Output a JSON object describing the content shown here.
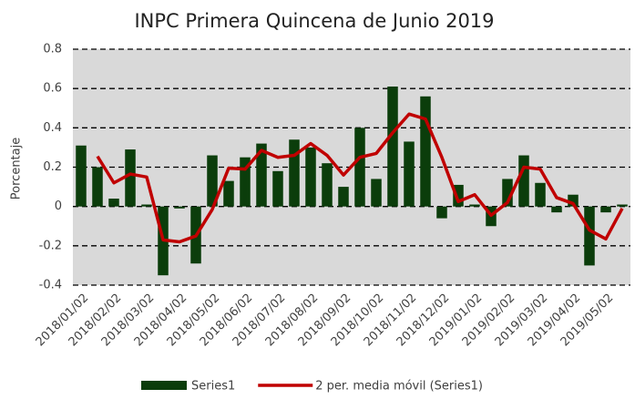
{
  "chart_data": {
    "type": "bar",
    "title": "INPC Primera Quincena de Junio 2019",
    "y_label": "Porcentaje",
    "categories": [
      "2018/01/02",
      null,
      "2018/02/02",
      null,
      "2018/03/02",
      null,
      "2018/04/02",
      null,
      "2018/05/02",
      null,
      "2018/06/02",
      null,
      "2018/07/02",
      null,
      "2018/08/02",
      null,
      "2018/09/02",
      null,
      "2018/10/02",
      null,
      "2018/11/02",
      null,
      "2018/12/02",
      null,
      "2019/01/02",
      null,
      "2019/02/02",
      null,
      "2019/03/02",
      null,
      "2019/04/02",
      null,
      "2019/05/02",
      null
    ],
    "series": [
      {
        "name": "Series1",
        "type": "bar",
        "color": "#0b3d0b",
        "values": [
          0.31,
          0.2,
          0.04,
          0.29,
          0.01,
          -0.35,
          -0.01,
          -0.29,
          0.26,
          0.13,
          0.25,
          0.32,
          0.18,
          0.34,
          0.3,
          0.22,
          0.1,
          0.4,
          0.14,
          0.61,
          0.33,
          0.56,
          -0.06,
          0.11,
          0.01,
          -0.1,
          0.14,
          0.26,
          0.12,
          -0.03,
          0.06,
          -0.3,
          -0.03,
          0.01
        ]
      },
      {
        "name": "2 per. media móvil (Series1)",
        "type": "line",
        "color": "#c00000",
        "values": [
          null,
          0.255,
          0.12,
          0.165,
          0.15,
          -0.17,
          -0.18,
          -0.15,
          -0.015,
          0.195,
          0.19,
          0.285,
          0.25,
          0.26,
          0.32,
          0.26,
          0.16,
          0.25,
          0.27,
          0.375,
          0.47,
          0.445,
          0.25,
          0.025,
          0.06,
          -0.045,
          0.02,
          0.2,
          0.19,
          0.045,
          0.015,
          -0.12,
          -0.165,
          -0.01
        ]
      }
    ],
    "ylim": [
      -0.4,
      0.8
    ],
    "yticks": [
      -0.4,
      -0.2,
      0,
      0.2,
      0.4,
      0.6,
      0.8
    ],
    "grid": true,
    "legend": "bottom"
  }
}
